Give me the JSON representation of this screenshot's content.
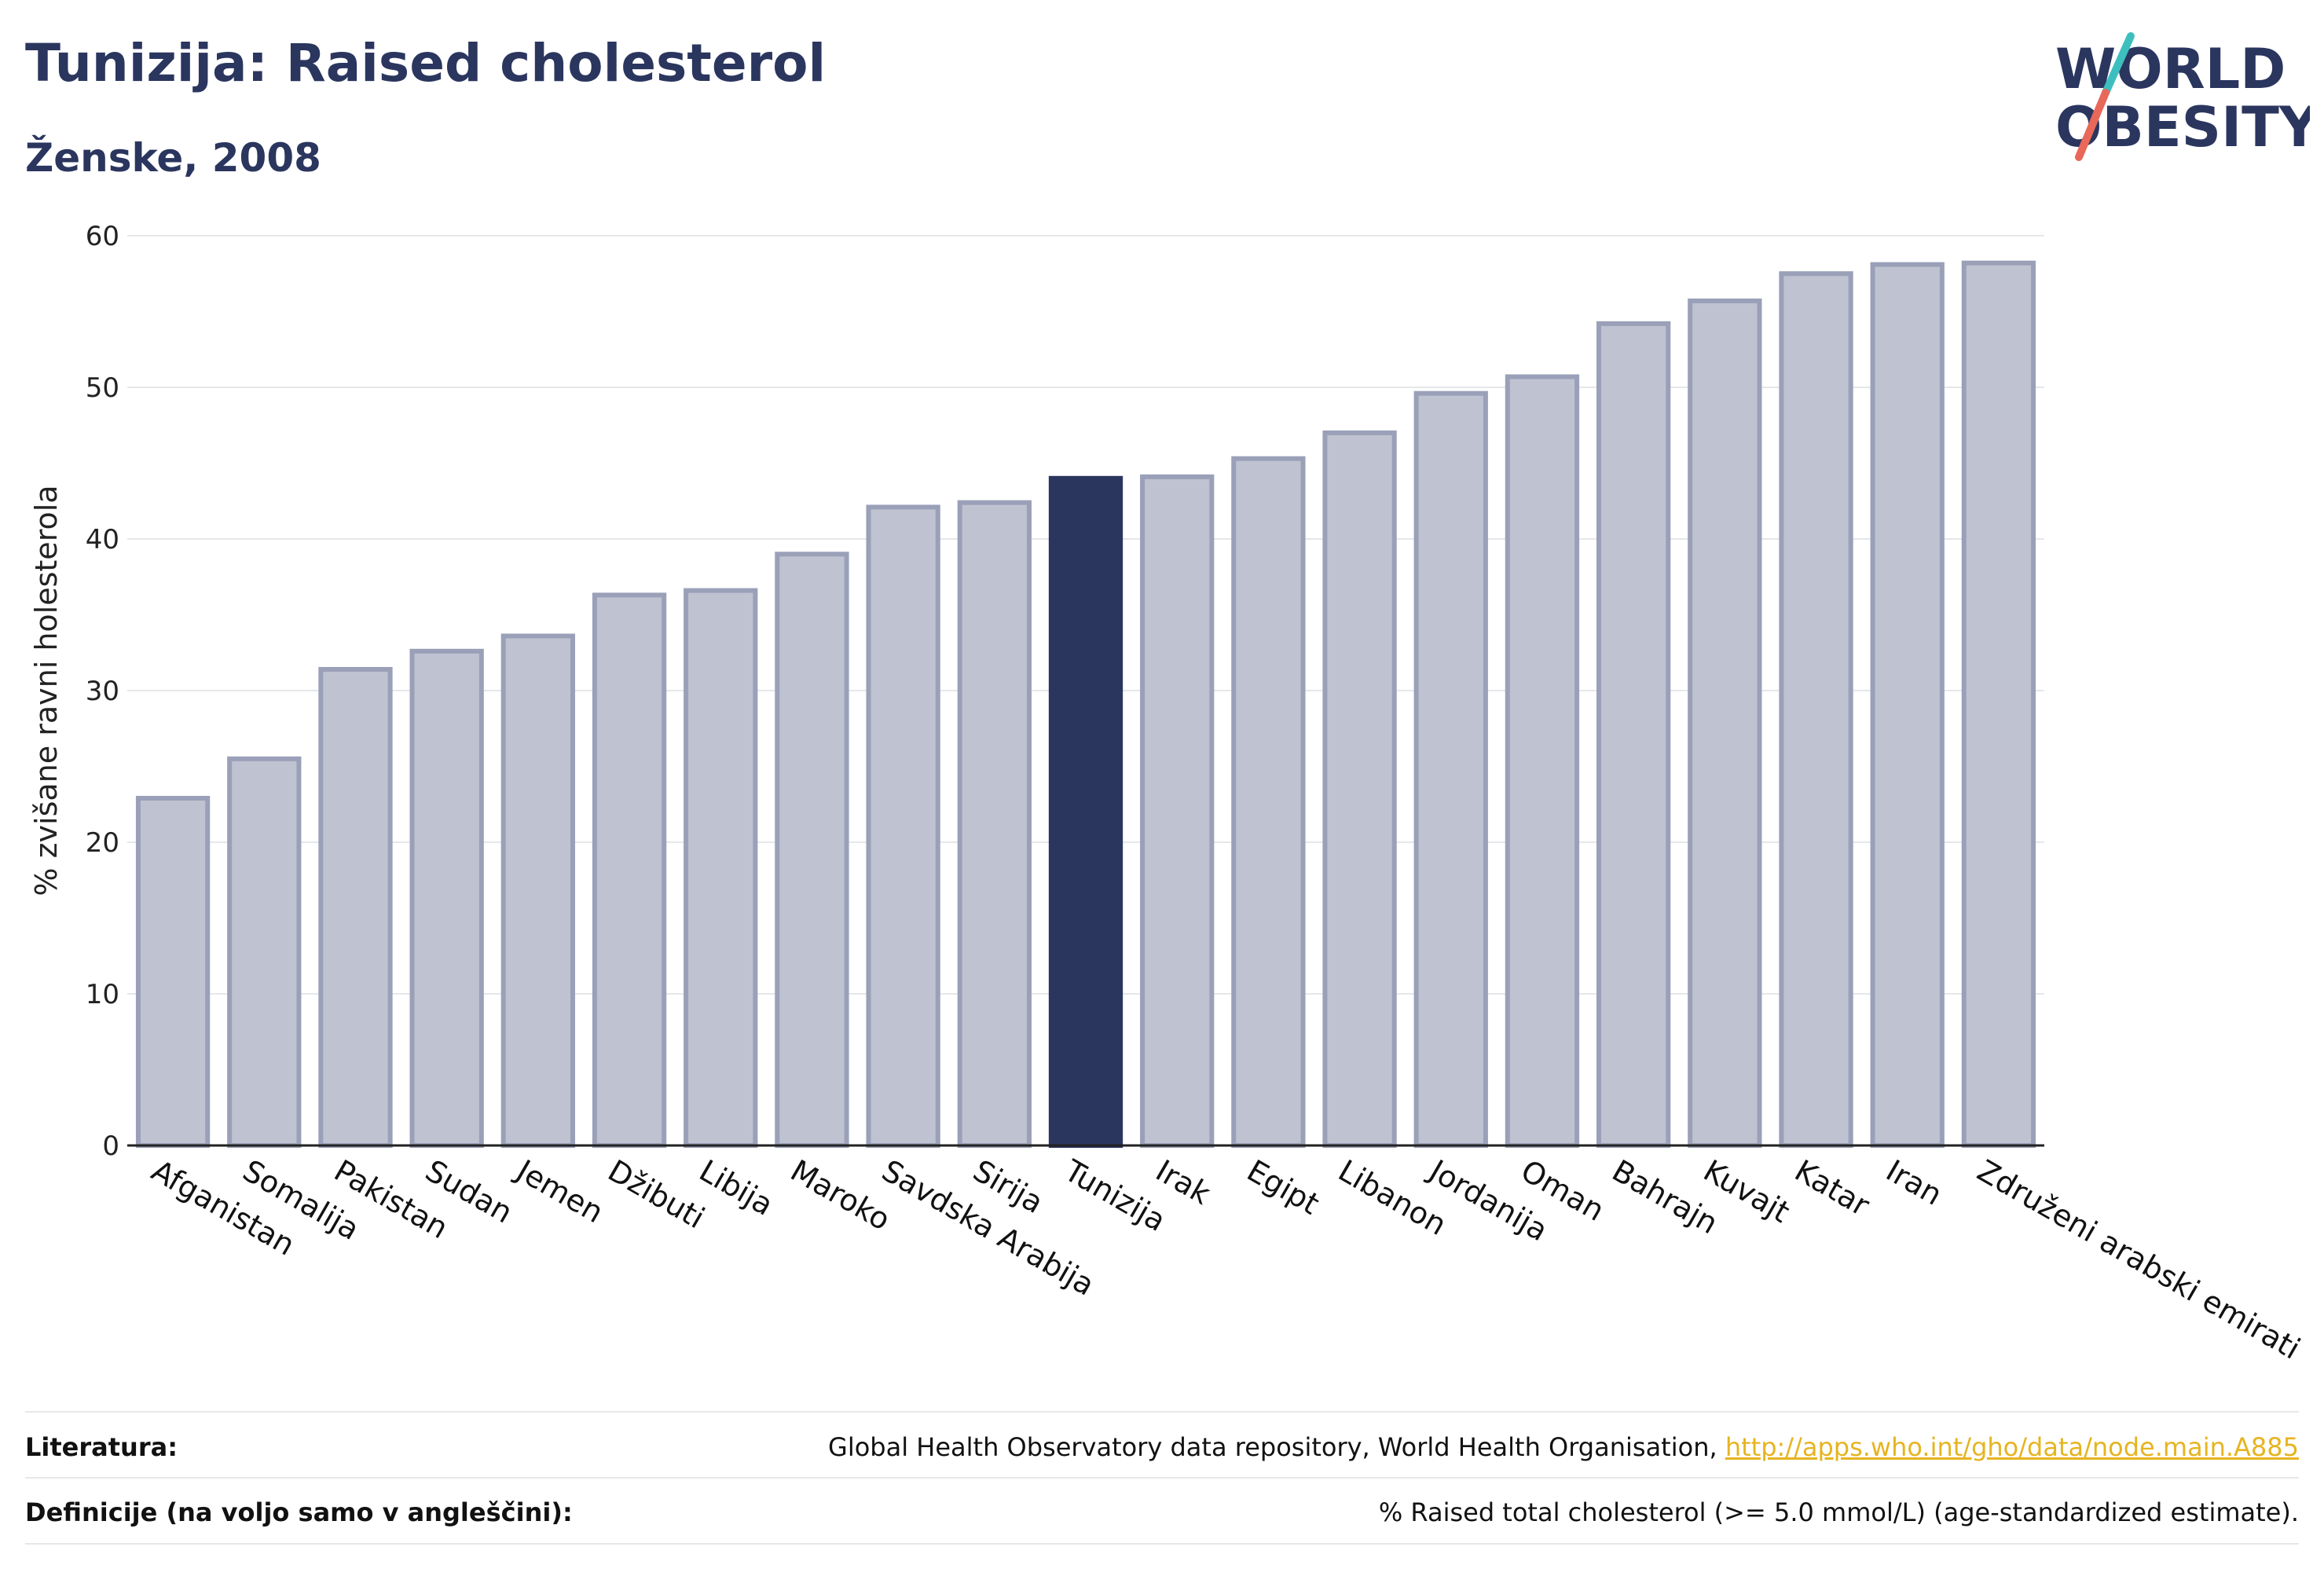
{
  "header": {
    "title": "Tunizija: Raised cholesterol",
    "subtitle": "Ženske, 2008"
  },
  "logo": {
    "line1": "WORLD",
    "line2": "OBESITY"
  },
  "colors": {
    "highlight": "#2b365f",
    "bar_fill": "#bfc2d0",
    "bar_stroke": "#9aa0b8",
    "grid": "#e6e7ea",
    "link": "#e6b420",
    "logo_teal": "#3dbfbf",
    "logo_coral": "#e8685a"
  },
  "chart_data": {
    "type": "bar",
    "title": "Tunizija: Raised cholesterol",
    "subtitle": "Ženske, 2008",
    "ylabel": "% zvišane ravni holesterola",
    "xlabel": "",
    "ylim": [
      0,
      60
    ],
    "yticks": [
      0,
      10,
      20,
      30,
      40,
      50,
      60
    ],
    "grid": true,
    "highlight_category": "Tunizija",
    "categories": [
      "Afganistan",
      "Somalija",
      "Pakistan",
      "Sudan",
      "Jemen",
      "Džibuti",
      "Libija",
      "Maroko",
      "Savdska Arabija",
      "Sirija",
      "Tunizija",
      "Irak",
      "Egipt",
      "Libanon",
      "Jordanija",
      "Oman",
      "Bahrajn",
      "Kuvajt",
      "Katar",
      "Iran",
      "Združeni arabski emirati"
    ],
    "values": [
      22.9,
      25.5,
      31.4,
      32.6,
      33.6,
      36.3,
      36.6,
      39.0,
      42.1,
      42.4,
      44.0,
      44.1,
      45.3,
      47.0,
      49.6,
      50.7,
      54.2,
      55.7,
      57.5,
      58.1,
      58.2
    ]
  },
  "footer": {
    "sources_label": "Literatura:",
    "sources_text": "Global Health Observatory data repository, World Health Organisation, ",
    "sources_link": "http://apps.who.int/gho/data/node.main.A885",
    "definitions_label": "Definicije (na voljo samo v angleščini):",
    "definitions_text": "% Raised total cholesterol (>= 5.0 mmol/L) (age-standardized estimate)."
  }
}
